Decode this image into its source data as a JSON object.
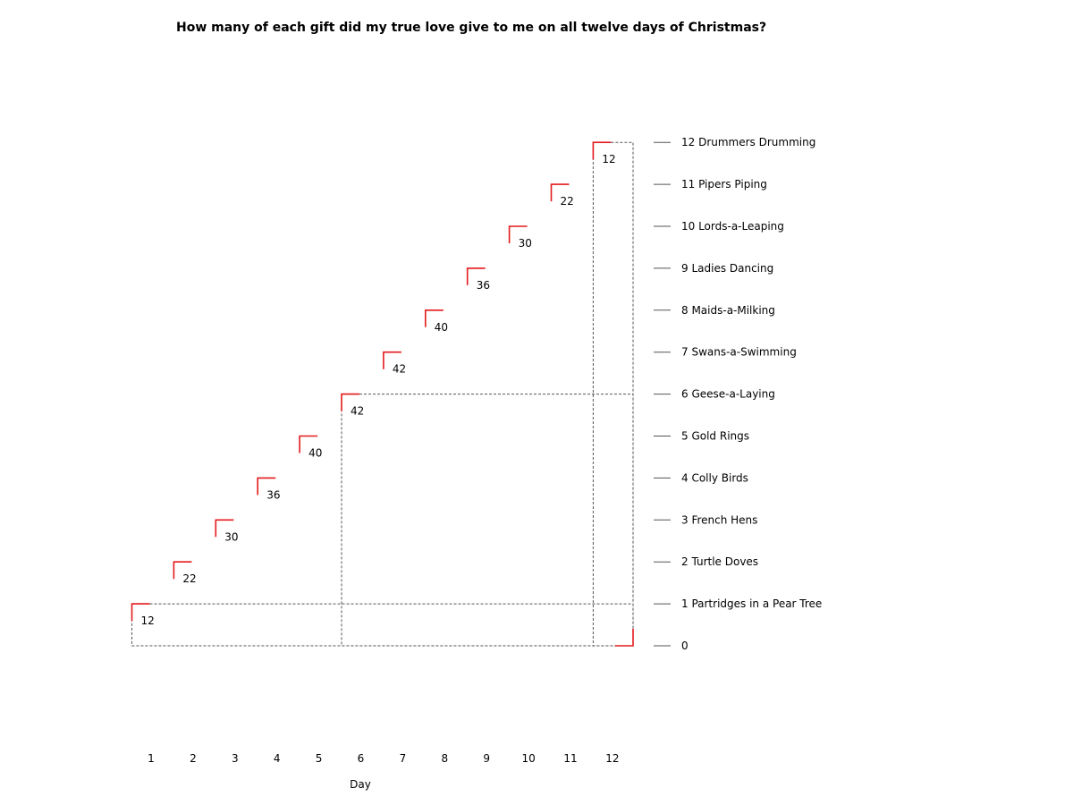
{
  "chart_data": {
    "type": "bar",
    "title": "How many of each gift did my true love give to me on all twelve days of Christmas?",
    "xlabel": "Day",
    "ylabel": "",
    "categories": [
      "1",
      "2",
      "3",
      "4",
      "5",
      "6",
      "7",
      "8",
      "9",
      "10",
      "11",
      "12"
    ],
    "values": [
      12,
      22,
      30,
      36,
      40,
      42,
      42,
      40,
      36,
      30,
      22,
      12
    ],
    "value_labels": [
      "12",
      "22",
      "30",
      "36",
      "40",
      "42",
      "42",
      "40",
      "36",
      "30",
      "22",
      "12"
    ],
    "y_ticks": [
      {
        "value": 0,
        "label": "0"
      },
      {
        "value": 1,
        "label": "1 Partridges in a Pear Tree"
      },
      {
        "value": 2,
        "label": "2 Turtle Doves"
      },
      {
        "value": 3,
        "label": "3 French Hens"
      },
      {
        "value": 4,
        "label": "4 Colly Birds"
      },
      {
        "value": 5,
        "label": "5 Gold Rings"
      },
      {
        "value": 6,
        "label": "6 Geese-a-Laying"
      },
      {
        "value": 7,
        "label": "7 Swans-a-Swimming"
      },
      {
        "value": 8,
        "label": "8 Maids-a-Milking"
      },
      {
        "value": 9,
        "label": "9 Ladies Dancing"
      },
      {
        "value": 10,
        "label": "10 Lords-a-Leaping"
      },
      {
        "value": 11,
        "label": "11 Pipers Piping"
      },
      {
        "value": 12,
        "label": "12 Drummers Drumming"
      }
    ],
    "ylim": [
      0,
      12
    ],
    "grid": false,
    "colors": {
      "marker": "#e41a1c",
      "dashed": "#555555",
      "tick": "#555555",
      "text": "#000000"
    }
  }
}
